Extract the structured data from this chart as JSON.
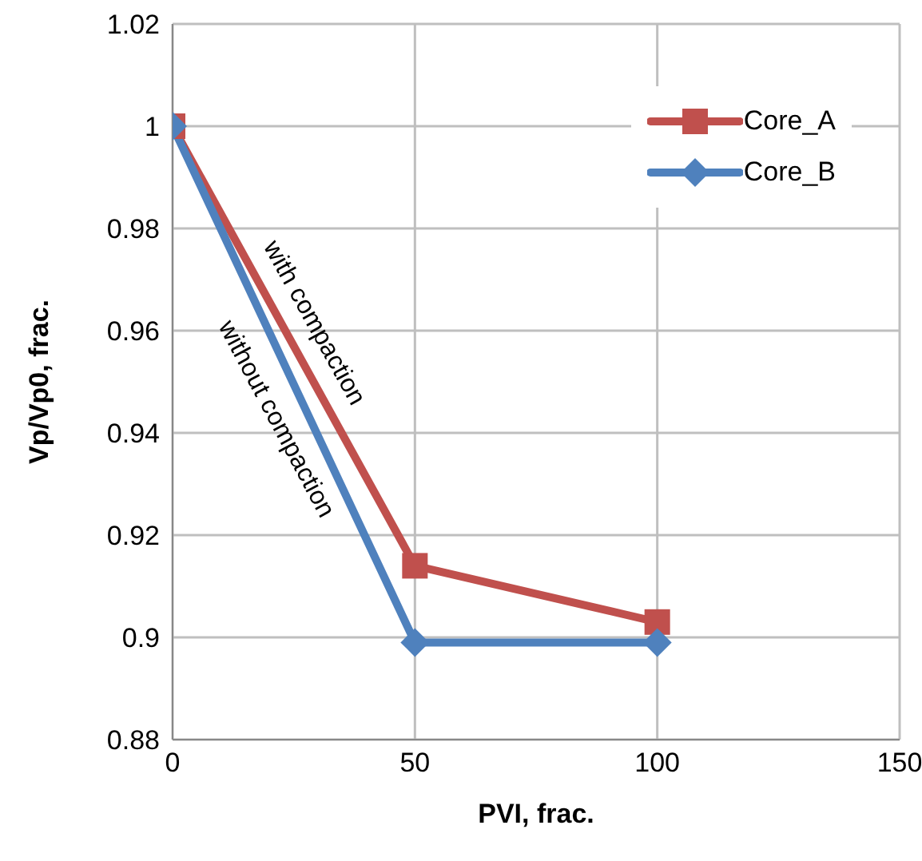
{
  "chart_data": {
    "type": "line",
    "xlabel": "PVI, frac.",
    "ylabel": "Vp/Vp0, frac.",
    "x": [
      0,
      50,
      100
    ],
    "series": [
      {
        "name": "Core_A",
        "color": "#c0504d",
        "values": [
          1,
          0.914,
          0.903
        ],
        "marker": "square"
      },
      {
        "name": "Core_B",
        "color": "#4f81bd",
        "values": [
          1,
          0.899,
          0.899
        ],
        "marker": "diamond"
      }
    ],
    "xlim": [
      0,
      150
    ],
    "xticks": [
      0,
      50,
      100,
      150
    ],
    "ylim": [
      0.88,
      1.02
    ],
    "yticks": [
      0.88,
      0.9,
      0.92,
      0.94,
      0.96,
      0.98,
      1,
      1.02
    ],
    "grid": true,
    "legend": "top right",
    "line_style": "solid",
    "annotations": [
      "with compaction",
      "without compaction"
    ]
  }
}
